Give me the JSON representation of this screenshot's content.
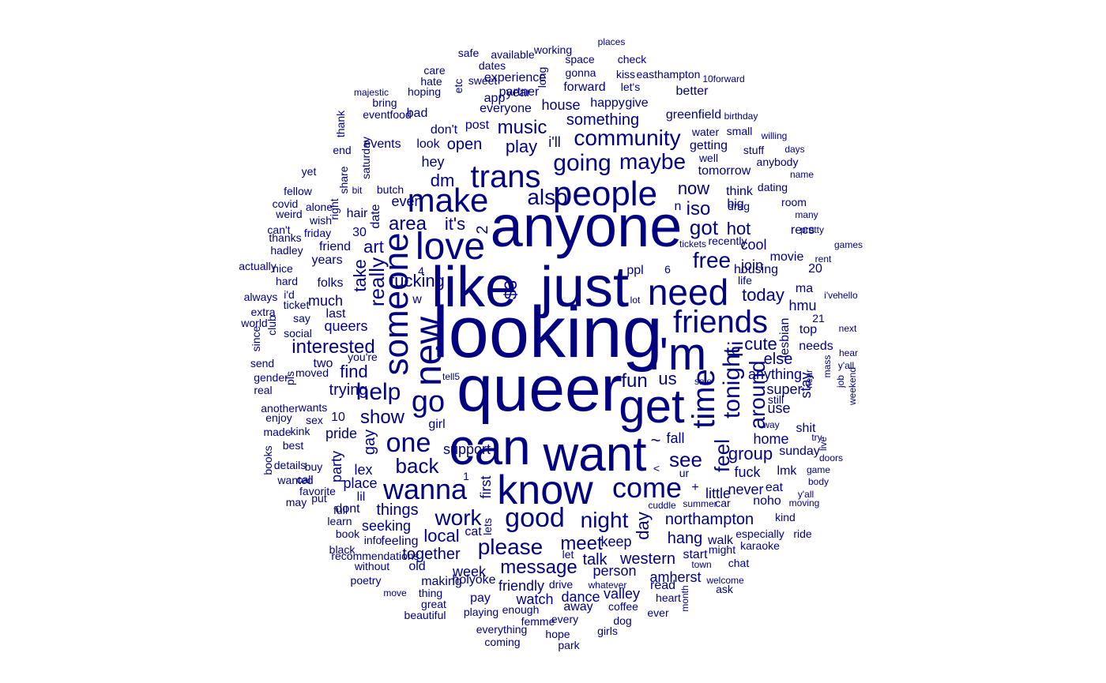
{
  "chart_data": {
    "type": "wordcloud",
    "color": "#000080",
    "words": [
      "looking",
      "queer",
      "anyone",
      "just",
      "like",
      "can",
      "want",
      "get",
      "know",
      "i'm",
      "people",
      "trans",
      "love",
      "make",
      "need",
      "new",
      "friends",
      "someone",
      "go",
      "wanna",
      "time",
      "good",
      "come",
      "going",
      "community",
      "maybe",
      "help",
      "one",
      "tonight",
      "night",
      "also",
      "work",
      "please",
      "free",
      "around",
      "see",
      "back",
      "meet",
      "message",
      "fun",
      "really",
      "got",
      "show",
      "music",
      "iso",
      "area",
      "interested",
      "local",
      "feel",
      "now",
      "play",
      "dm",
      "it's",
      "group",
      "hi",
      "cute",
      "today",
      "us",
      "hot",
      "art",
      "take",
      "find",
      "day",
      "northampton",
      "talk",
      "western",
      "something",
      "together",
      "trying",
      "open",
      "gay",
      "hang",
      "2",
      "$3",
      "amherst",
      "little",
      "seeking",
      "friendly",
      "watch",
      "week",
      "person",
      "dance",
      "valley",
      "things",
      "party",
      "home",
      "first",
      "lex",
      "much",
      "queers",
      "even",
      "hey",
      "cool",
      "join",
      "big",
      "think",
      "getting",
      "tomorrow",
      "greenfield",
      "house",
      "everyone",
      "year",
      "post",
      "support",
      "pride",
      "place",
      "30",
      "friend",
      "years",
      "folks",
      "last",
      "two",
      "10",
      "sex",
      "wants",
      "say",
      "social",
      "nice",
      "friday",
      "hair",
      "date",
      "saturday",
      "share",
      "events",
      "look",
      "don't",
      "bad",
      "eventfood",
      "bring",
      "majestic",
      "hoping",
      "hate",
      "care",
      "dates",
      "sweet",
      "experience",
      "app",
      "partner",
      "etc",
      "long",
      "space",
      "gonna",
      "kiss",
      "forward",
      "happy",
      "give",
      "let's",
      "better",
      "easthampton",
      "check",
      "places",
      "working",
      "available",
      "safe",
      "10forward",
      "birthday",
      "small",
      "willing",
      "water",
      "well",
      "stuff",
      "days",
      "anybody",
      "name",
      "dating",
      "drag",
      "room",
      "many",
      "recs",
      "pretty",
      "games",
      "tickets",
      "recently",
      "rent",
      "20",
      "movie",
      "housing",
      "hmu",
      "ma",
      "i've",
      "hello",
      "top",
      "21",
      "next",
      "needs",
      "hear",
      "lesbian",
      "y'all",
      "mass",
      "near",
      "job",
      "weekend",
      "stay",
      "super",
      "anything",
      "else",
      "use",
      "still",
      "way",
      "shit",
      "try",
      "live",
      "sunday",
      "doors",
      "game",
      "body",
      "y'all",
      "moving",
      "eat",
      "lmk",
      "fuck",
      "never",
      "noho",
      "car",
      "summer",
      "kind",
      "ride",
      "especially",
      "karaoke",
      "might",
      "walk",
      "start",
      "town",
      "chat",
      "ask",
      "welcome",
      "whatever",
      "read",
      "heart",
      "month",
      "ever",
      "dog",
      "girls",
      "coffee",
      "away",
      "every",
      "femme",
      "hope",
      "park",
      "coming",
      "everything",
      "enough",
      "playing",
      "pay",
      "holyoke",
      "making",
      "thing",
      "great",
      "beautiful",
      "move",
      "poetry",
      "without",
      "recommendations",
      "black",
      "book",
      "learn",
      "full",
      "put",
      "may",
      "wanted",
      "favorite",
      "call",
      "details",
      "buy",
      "best",
      "kink",
      "made",
      "books",
      "enjoy",
      "another",
      "real",
      "gender",
      "send",
      "moved",
      "pls",
      "you're",
      "since",
      "club",
      "world",
      "extra",
      "always",
      "ticket",
      "i'd",
      "hard",
      "actually",
      "hadley",
      "thanks",
      "can't",
      "weird",
      "covid",
      "fellow",
      "alone",
      "wish",
      "right",
      "bit",
      "butch",
      "yet",
      "end",
      "thank",
      "fucking",
      "w",
      "4",
      "ppl",
      "6",
      "lot",
      "n",
      "~",
      "+",
      "<",
      "ur",
      "cuddle",
      "sale",
      "fall",
      "girl",
      "tell5",
      "lil",
      "dont",
      "feeling",
      "info",
      "old",
      "keep",
      "let",
      "drive",
      "cat",
      "1",
      "lets",
      "i'll",
      "life",
      "hit"
    ]
  }
}
